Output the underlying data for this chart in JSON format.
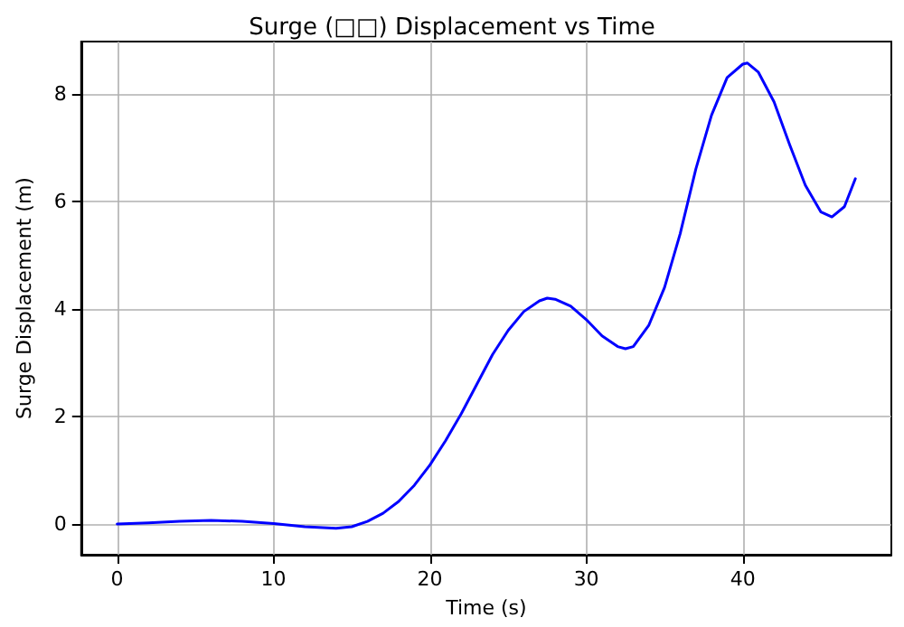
{
  "chart_data": {
    "type": "line",
    "title": "Surge (□□) Displacement vs Time",
    "xlabel": "Time (s)",
    "ylabel": "Surge Displacement (m)",
    "x": [
      0,
      2,
      4,
      6,
      8,
      10,
      12,
      14,
      15,
      16,
      17,
      18,
      19,
      20,
      21,
      22,
      23,
      24,
      25,
      26,
      27,
      27.5,
      28,
      29,
      30,
      31,
      32,
      32.5,
      33,
      34,
      35,
      36,
      37,
      38,
      39,
      40,
      40.3,
      41,
      42,
      43,
      44,
      45,
      45.7,
      46.5,
      47.2
    ],
    "series": [
      {
        "color": "#0000ff",
        "values": [
          0,
          0.02,
          0.05,
          0.07,
          0.05,
          0.01,
          -0.05,
          -0.08,
          -0.05,
          0.05,
          0.2,
          0.42,
          0.72,
          1.1,
          1.55,
          2.05,
          2.6,
          3.15,
          3.6,
          3.95,
          4.15,
          4.2,
          4.18,
          4.05,
          3.8,
          3.5,
          3.3,
          3.26,
          3.3,
          3.7,
          4.4,
          5.4,
          6.6,
          7.6,
          8.3,
          8.55,
          8.57,
          8.4,
          7.85,
          7.05,
          6.3,
          5.8,
          5.71,
          5.9,
          6.42
        ]
      }
    ],
    "xlim": [
      -2.3,
      49.5
    ],
    "ylim": [
      -0.57,
      8.97
    ],
    "xticks": [
      0,
      10,
      20,
      30,
      40
    ],
    "yticks": [
      0,
      2,
      4,
      6,
      8
    ],
    "grid": true,
    "marker": "none",
    "line_style": "solid"
  }
}
